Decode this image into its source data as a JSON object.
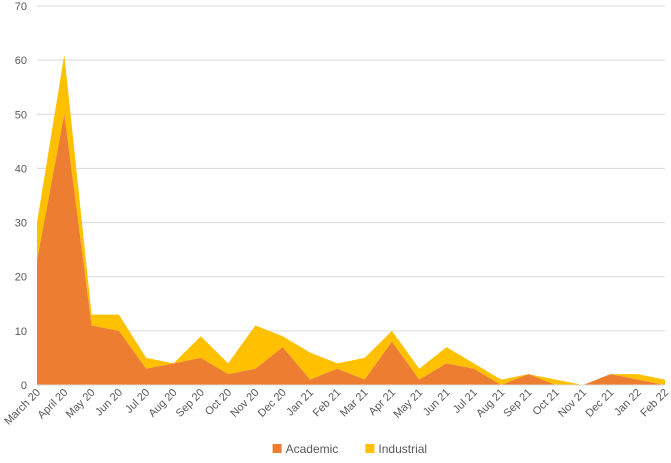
{
  "chart_data": {
    "type": "area",
    "stacked": true,
    "categories": [
      "March 20",
      "April 20",
      "May 20",
      "Jun 20",
      "Jul 20",
      "Aug 20",
      "Sep 20",
      "Oct 20",
      "Nov 20",
      "Dec 20",
      "Jan 21",
      "Feb 21",
      "Mar 21",
      "Apr 21",
      "May 21",
      "Jun 21",
      "Jul 21",
      "Aug 21",
      "Sep 21",
      "Oct 21",
      "Nov 21",
      "Dec 21",
      "Jan 22",
      "Feb 22"
    ],
    "series": [
      {
        "name": "Academic",
        "color": "#ED7D31",
        "values": [
          23,
          50,
          11,
          10,
          3,
          4,
          5,
          2,
          3,
          7,
          1,
          3,
          1,
          8,
          1,
          4,
          3,
          0,
          2,
          0,
          0,
          2,
          1,
          0
        ]
      },
      {
        "name": "Industrial",
        "color": "#FFC000",
        "values": [
          7,
          11,
          2,
          3,
          2,
          0,
          4,
          2,
          8,
          2,
          5,
          1,
          4,
          2,
          2,
          3,
          1,
          1,
          0,
          1,
          0,
          0,
          1,
          1
        ]
      }
    ],
    "ylim": [
      0,
      70
    ],
    "yticks": [
      "0",
      "10",
      "20",
      "30",
      "40",
      "50",
      "60",
      "70"
    ],
    "grid": true,
    "legend": "bottom-center"
  }
}
